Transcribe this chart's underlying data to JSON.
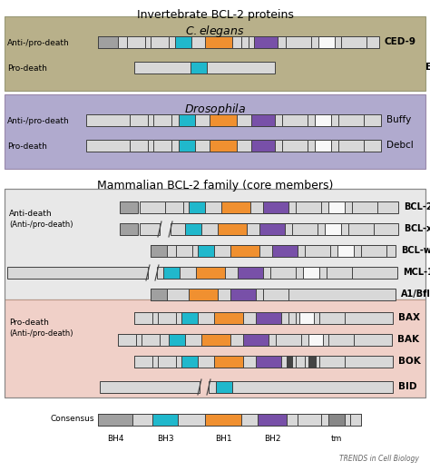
{
  "title": "Invertebrate BCL-2 proteins",
  "title_mammalian": "Mammalian BCL-2 family (core members)",
  "bg_color_celegans": "#b8b08a",
  "bg_color_drosophila": "#b0aace",
  "bg_color_mammalian_anti": "#e8e8e8",
  "bg_color_mammalian_pro": "#f0d0c8",
  "bar_fill": "#d8d8d8",
  "bar_edge": "#404040",
  "color_bh4": "#a0a0a0",
  "color_bh3": "#20b8cc",
  "color_bh1": "#f09030",
  "color_bh2": "#7850a8",
  "color_tm_white": "#f8f8f8",
  "trends_text": "TRENDS in Cell Biology"
}
